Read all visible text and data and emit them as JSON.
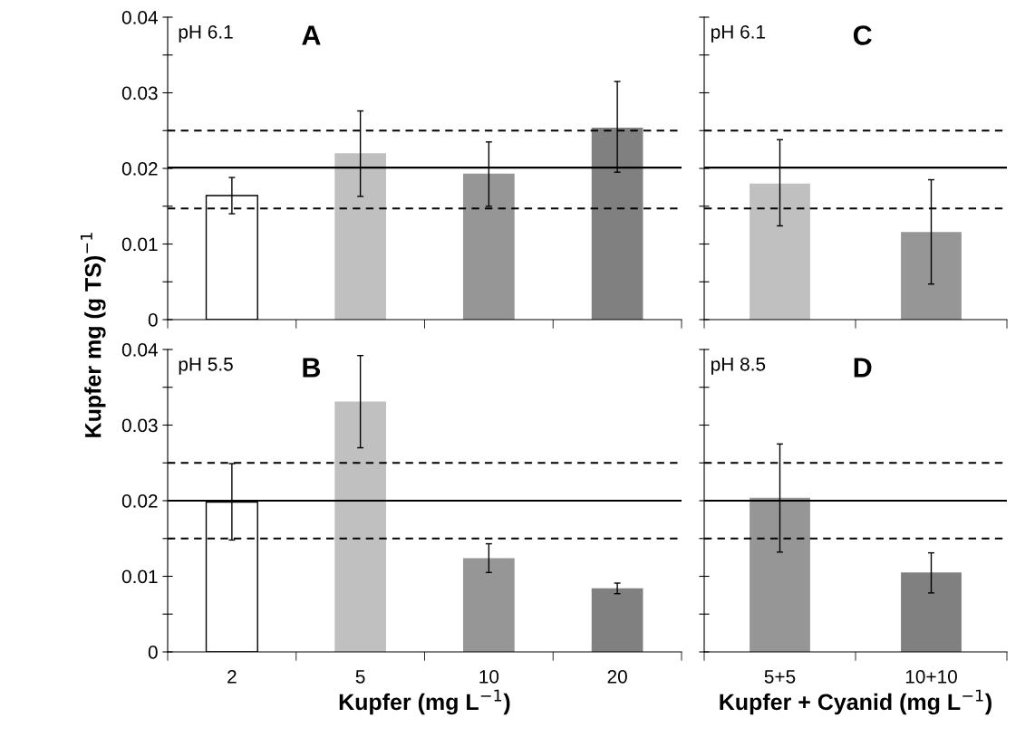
{
  "chart_data": [
    {
      "type": "bar",
      "ylabel": "Kupfer mg (g TS)$^{−1}$",
      "categories": [
        null,
        null,
        null,
        null
      ],
      "tick_labels": "y",
      "values": [
        0.0164,
        0.022,
        0.0193,
        0.0254
      ],
      "colors": [
        "#ffffff",
        "#c0c0c0",
        "#969696",
        "#808080"
      ],
      "errors": [
        [
          0.014,
          0.0188
        ],
        [
          0.0163,
          0.0276
        ],
        [
          0.015,
          0.0235
        ],
        [
          0.0195,
          0.0315
        ]
      ],
      "ylim": [
        0,
        0.04
      ],
      "yticks": [
        0,
        {
          "value": 0.005,
          "label": null
        },
        0.01,
        {
          "value": 0.015,
          "label": null
        },
        0.02,
        {
          "value": 0.025,
          "label": null
        },
        0.03,
        {
          "value": 0.035,
          "label": null
        },
        0.04
      ],
      "ref_lines": [
        {
          "axis": "y",
          "value": 0.0201,
          "line_style": "solid"
        },
        {
          "axis": "y",
          "value": 0.025,
          "line_style": "dashed"
        },
        {
          "axis": "y",
          "value": 0.0147,
          "line_style": "dashed"
        }
      ],
      "annotations": [
        "pH 6.1",
        "A"
      ]
    },
    {
      "type": "bar",
      "xlabel": "Kupfer (mg L$^{−1}$)",
      "categories": [
        "2",
        "5",
        "10",
        "20"
      ],
      "values": [
        0.0198,
        0.0331,
        0.0124,
        0.0084
      ],
      "colors": [
        "#ffffff",
        "#c0c0c0",
        "#969696",
        "#808080"
      ],
      "errors": [
        [
          0.0148,
          0.0249
        ],
        [
          0.027,
          0.0392
        ],
        [
          0.0105,
          0.0143
        ],
        [
          0.0077,
          0.0091
        ]
      ],
      "ylim": [
        0,
        0.04
      ],
      "yticks": [
        0,
        {
          "value": 0.005,
          "label": null
        },
        0.01,
        {
          "value": 0.015,
          "label": null
        },
        0.02,
        {
          "value": 0.025,
          "label": null
        },
        0.03,
        {
          "value": 0.035,
          "label": null
        },
        0.04
      ],
      "ref_lines": [
        {
          "axis": "y",
          "value": 0.02,
          "line_style": "solid"
        },
        {
          "axis": "y",
          "value": 0.025,
          "line_style": "dashed"
        },
        {
          "axis": "y",
          "value": 0.015,
          "line_style": "dashed"
        }
      ],
      "annotations": [
        "pH 5.5",
        "B"
      ]
    },
    {
      "type": "bar",
      "categories": [
        null,
        null
      ],
      "tick_labels": false,
      "values": [
        0.018,
        0.0116
      ],
      "colors": [
        "#c0c0c0",
        "#969696"
      ],
      "errors": [
        [
          0.0124,
          0.0238
        ],
        [
          0.0047,
          0.0185
        ]
      ],
      "ylim": [
        0,
        0.04
      ],
      "yticks": [
        0,
        0.005,
        0.01,
        0.015,
        0.02,
        0.025,
        0.03,
        0.035,
        0.04
      ],
      "ref_lines": [
        {
          "axis": "y",
          "value": 0.0201,
          "line_style": "solid"
        },
        {
          "axis": "y",
          "value": 0.025,
          "line_style": "dashed"
        },
        {
          "axis": "y",
          "value": 0.0147,
          "line_style": "dashed"
        }
      ],
      "annotations": [
        "pH 6.1",
        "C"
      ]
    },
    {
      "type": "bar",
      "xlabel": "Kupfer + Cyanid (mg L$^{−1}$)",
      "categories": [
        "5+5",
        "10+10"
      ],
      "tick_labels": "x",
      "values": [
        0.0204,
        0.0105
      ],
      "colors": [
        "#969696",
        "#808080"
      ],
      "errors": [
        [
          0.0132,
          0.0275
        ],
        [
          0.0078,
          0.0131
        ]
      ],
      "ylim": [
        0,
        0.04
      ],
      "yticks": [
        0,
        0.005,
        0.01,
        0.015,
        0.02,
        0.025,
        0.03,
        0.035,
        0.04
      ],
      "ref_lines": [
        {
          "axis": "y",
          "value": 0.02,
          "line_style": "solid"
        },
        {
          "axis": "y",
          "value": 0.025,
          "line_style": "dashed"
        },
        {
          "axis": "y",
          "value": 0.015,
          "line_style": "dashed"
        }
      ],
      "annotations": [
        "pH 8.5",
        "D"
      ]
    }
  ]
}
